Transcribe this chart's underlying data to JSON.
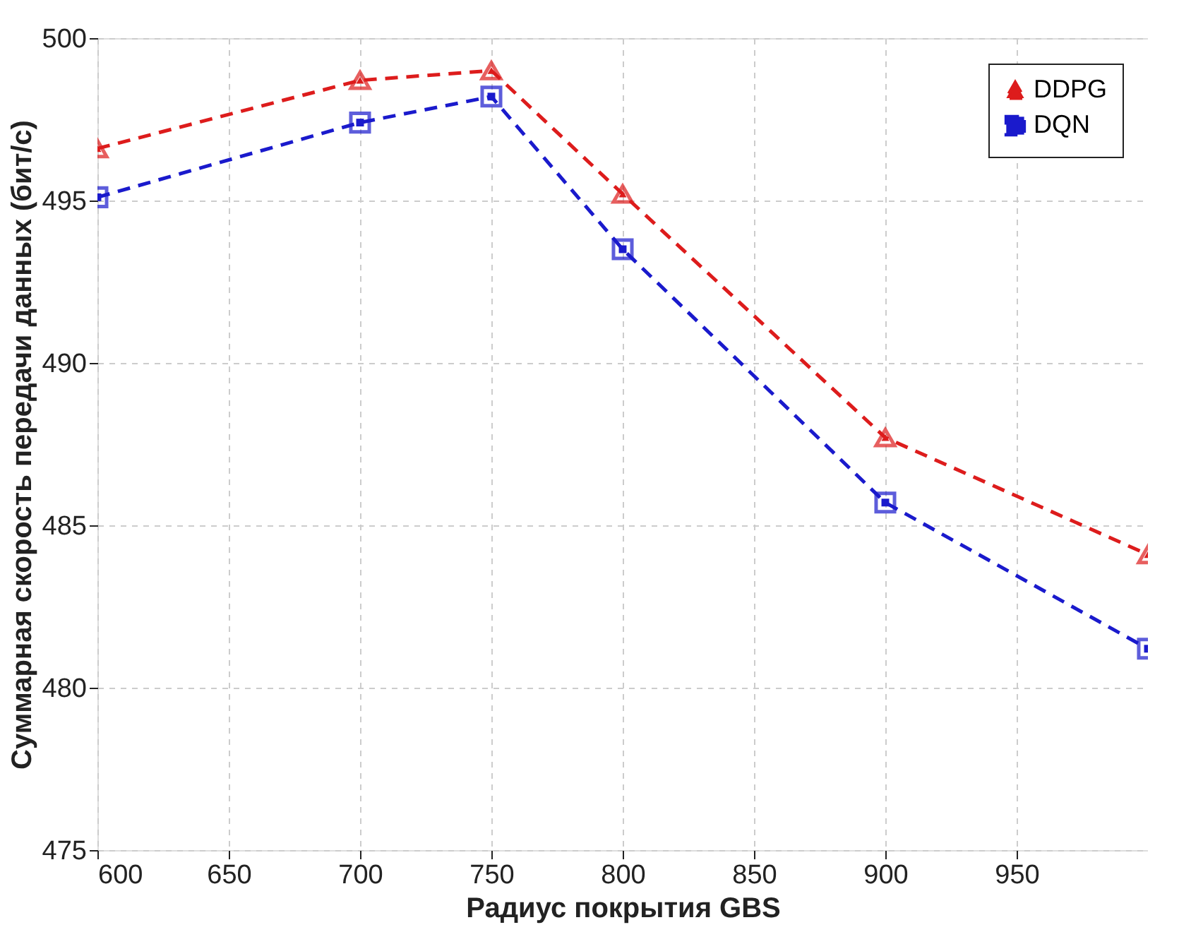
{
  "chart_data": {
    "type": "line",
    "xlabel": "Радиус покрытия GBS",
    "ylabel": "Суммарная скорость передачи данных (бит/с)",
    "x": [
      600,
      700,
      750,
      800,
      900,
      1000
    ],
    "series": [
      {
        "name": "DDPG",
        "color": "#dd1c1c",
        "marker": "triangle",
        "line_style": "dashed",
        "values": [
          496.6,
          498.7,
          499.0,
          495.2,
          487.7,
          484.1
        ]
      },
      {
        "name": "DQN",
        "color": "#1a1acc",
        "marker": "square",
        "line_style": "dashed",
        "values": [
          495.1,
          497.4,
          498.2,
          493.5,
          485.7,
          481.2
        ]
      }
    ],
    "xlim": [
      600,
      1000
    ],
    "xticks": [
      600,
      650,
      700,
      750,
      800,
      850,
      900,
      950
    ],
    "ylim": [
      475,
      500
    ],
    "yticks": [
      475,
      480,
      485,
      490,
      495,
      500
    ],
    "grid": true,
    "legend": "top right"
  }
}
